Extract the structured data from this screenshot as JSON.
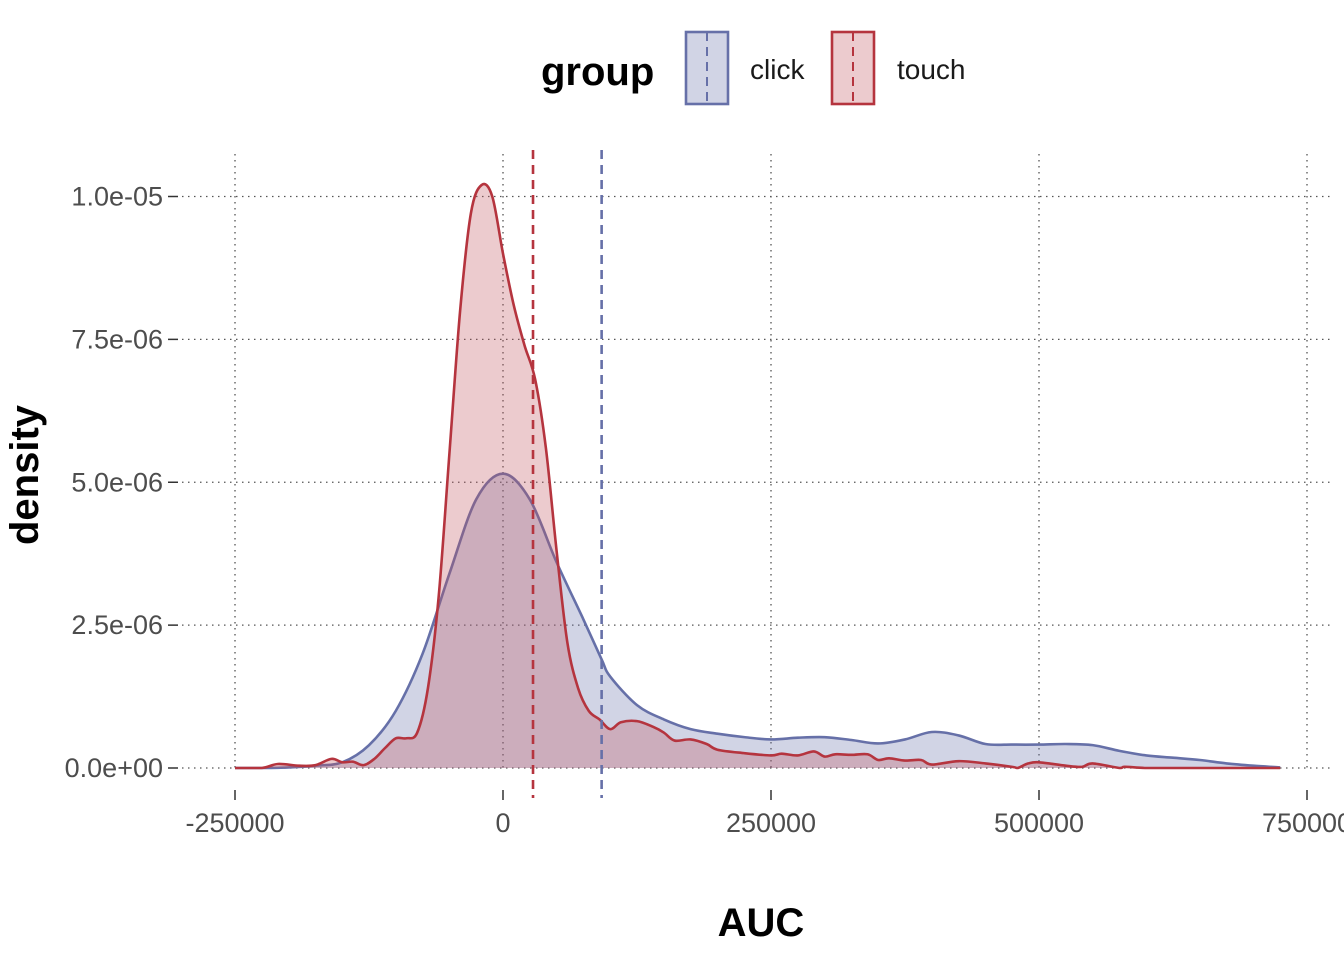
{
  "chart_data": {
    "type": "area",
    "subtype": "density",
    "title": "",
    "xlabel": "AUC",
    "ylabel": "density",
    "xlim": [
      -250000,
      725000
    ],
    "ylim": [
      0,
      1.03e-05
    ],
    "x_ticks": [
      -250000,
      0,
      250000,
      500000,
      750000
    ],
    "x_tick_labels": [
      "-250000",
      "0",
      "250000",
      "500000",
      "750000"
    ],
    "y_ticks": [
      0,
      2.5e-06,
      5e-06,
      7.5e-06,
      1e-05
    ],
    "y_tick_labels": [
      "0.0e+00",
      "2.5e-06",
      "5.0e-06",
      "7.5e-06",
      "1.0e-05"
    ],
    "grid": "dotted",
    "legend": {
      "title": "group",
      "position": "top",
      "entries": [
        "click",
        "touch"
      ]
    },
    "series": [
      {
        "name": "click",
        "color": "#6670a8",
        "fill": "#6670a8",
        "fill_opacity": 0.3,
        "mean": 92000,
        "x": [
          -250000,
          -225000,
          -200000,
          -175000,
          -150000,
          -125000,
          -100000,
          -75000,
          -50000,
          -25000,
          0,
          25000,
          50000,
          75000,
          92000,
          100000,
          125000,
          150000,
          175000,
          200000,
          225000,
          250000,
          275000,
          300000,
          325000,
          350000,
          375000,
          400000,
          425000,
          450000,
          475000,
          500000,
          525000,
          550000,
          575000,
          600000,
          625000,
          650000,
          675000,
          700000,
          725000
        ],
        "y": [
          0.0,
          0.0,
          1e-08,
          4e-08,
          1e-07,
          4e-07,
          1e-06,
          2e-06,
          3.4e-06,
          4.7e-06,
          5.15e-06,
          4.7e-06,
          3.6e-06,
          2.6e-06,
          1.9e-06,
          1.6e-06,
          1.1e-06,
          8.5e-07,
          6.8e-07,
          6e-07,
          5.4e-07,
          5e-07,
          5.3e-07,
          5.4e-07,
          4.9e-07,
          4.3e-07,
          5e-07,
          6.3e-07,
          5.7e-07,
          4.2e-07,
          4.1e-07,
          4.1e-07,
          4.2e-07,
          4e-07,
          3e-07,
          2.2e-07,
          1.8e-07,
          1.4e-07,
          8e-08,
          4e-08,
          1e-08
        ]
      },
      {
        "name": "touch",
        "color": "#b5343e",
        "fill": "#c0535e",
        "fill_opacity": 0.3,
        "mean": 28000,
        "x": [
          -250000,
          -225000,
          -210000,
          -190000,
          -175000,
          -160000,
          -150000,
          -140000,
          -130000,
          -120000,
          -110000,
          -100000,
          -90000,
          -80000,
          -70000,
          -60000,
          -50000,
          -40000,
          -30000,
          -20000,
          -10000,
          0,
          10000,
          20000,
          30000,
          40000,
          50000,
          60000,
          70000,
          80000,
          90000,
          100000,
          110000,
          125000,
          140000,
          150000,
          160000,
          175000,
          190000,
          200000,
          225000,
          250000,
          260000,
          275000,
          290000,
          300000,
          310000,
          325000,
          340000,
          350000,
          360000,
          375000,
          390000,
          400000,
          425000,
          450000,
          475000,
          480000,
          490000,
          500000,
          525000,
          540000,
          550000,
          575000,
          580000,
          600000,
          625000,
          650000,
          700000,
          725000
        ],
        "y": [
          0.0,
          0.0,
          7e-08,
          4e-08,
          5e-08,
          1.6e-07,
          1e-07,
          1.1e-07,
          5e-08,
          1.6e-07,
          3.5e-07,
          5.2e-07,
          5.2e-07,
          6.2e-07,
          1.4e-06,
          3e-06,
          5.5e-06,
          8e-06,
          9.7e-06,
          1.02e-05,
          1e-05,
          9e-06,
          8.1e-06,
          7.4e-06,
          6.8e-06,
          5.6e-06,
          3.8e-06,
          2.2e-06,
          1.4e-06,
          1e-06,
          8.5e-07,
          6.8e-07,
          8e-07,
          8.2e-07,
          7.2e-07,
          6.2e-07,
          4.8e-07,
          5e-07,
          4.2e-07,
          3.2e-07,
          2.6e-07,
          2.2e-07,
          2.5e-07,
          2.2e-07,
          2.9e-07,
          2e-07,
          2.4e-07,
          2.3e-07,
          2.4e-07,
          1.4e-07,
          1.7e-07,
          1.3e-07,
          1.4e-07,
          6e-08,
          1.2e-07,
          8e-08,
          2e-08,
          0.0,
          8e-08,
          1e-07,
          4e-08,
          2e-08,
          8e-08,
          0.0,
          2e-08,
          0.0,
          0.0,
          0.0,
          0.0,
          0.0
        ]
      }
    ]
  }
}
